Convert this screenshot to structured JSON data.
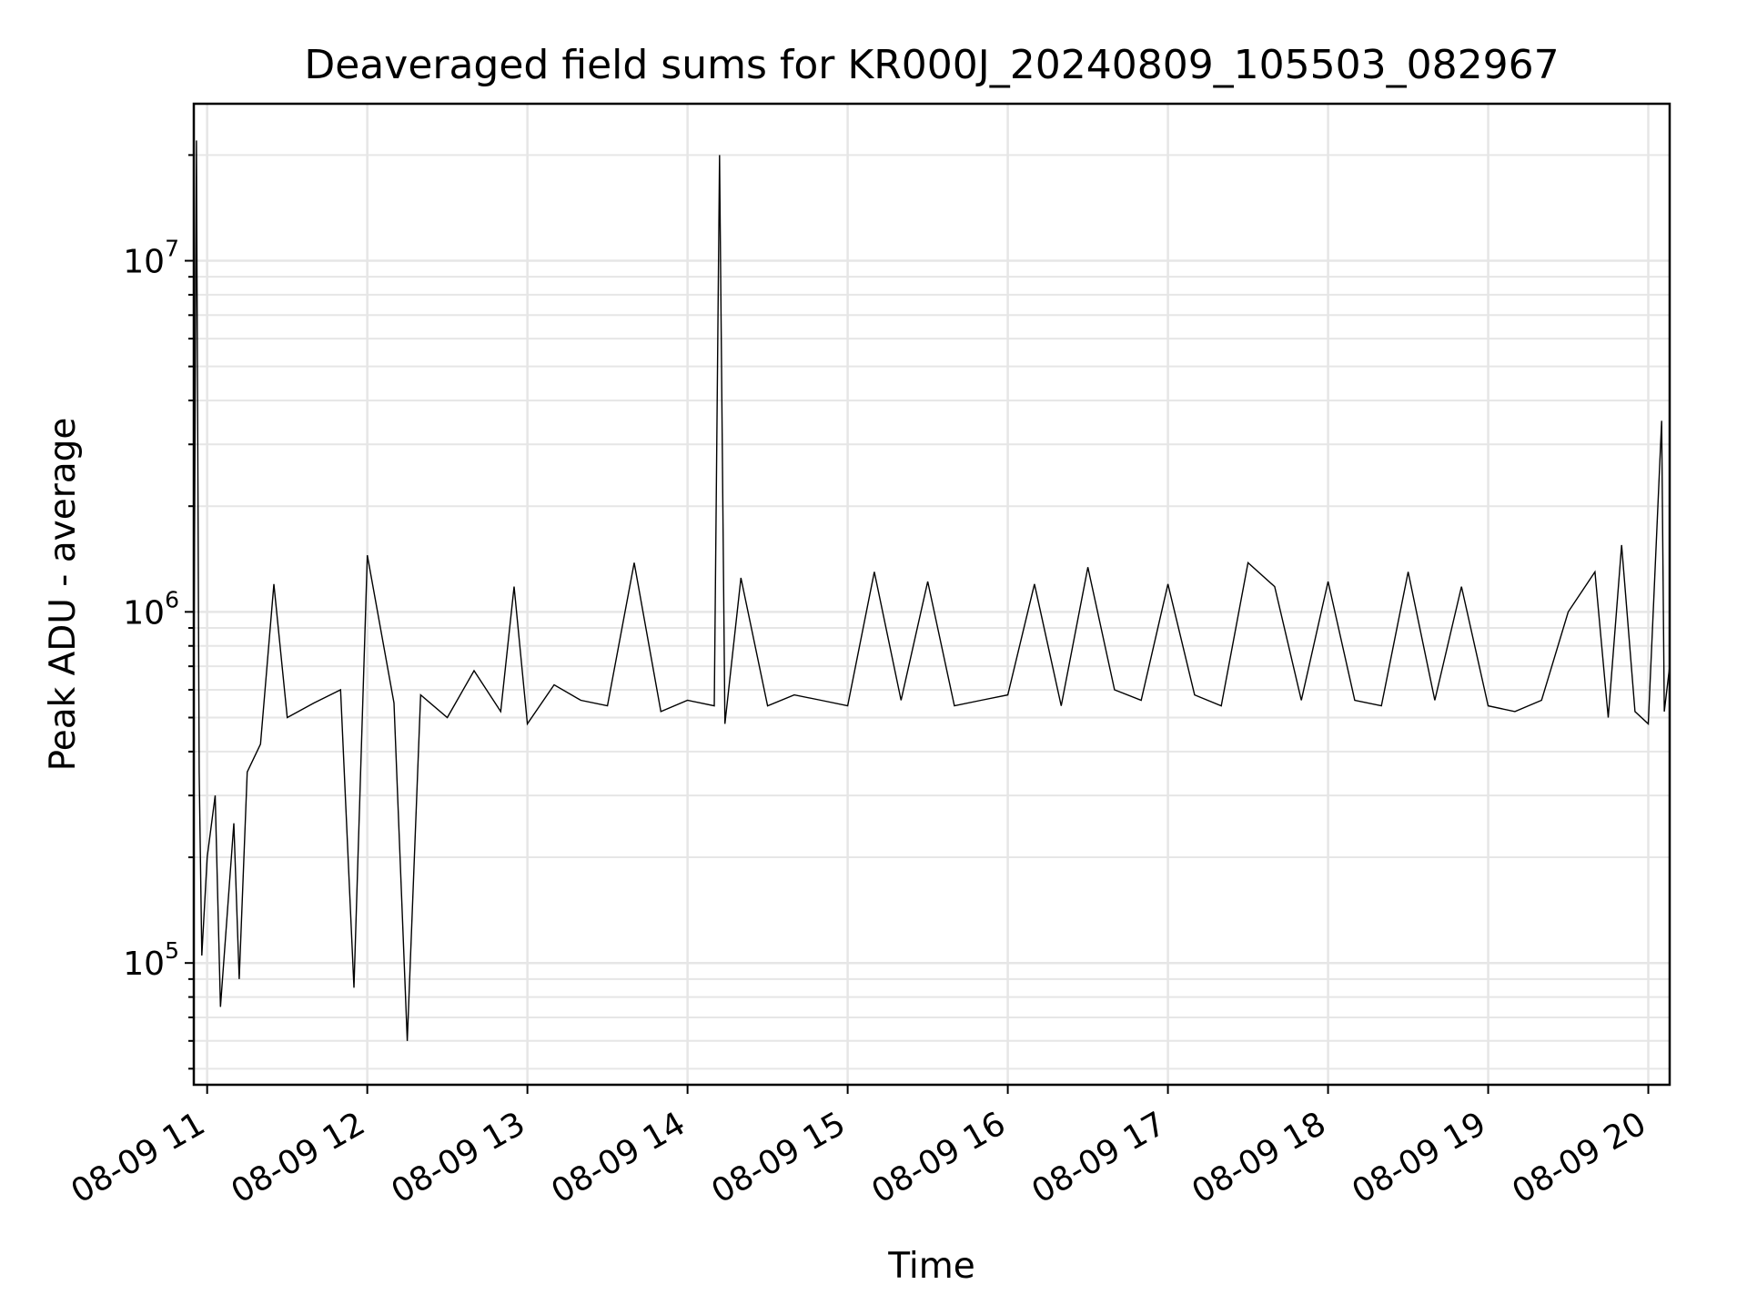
{
  "chart_data": {
    "type": "line",
    "title": "Deaveraged field sums for KR000J_20240809_105503_082967",
    "xlabel": "Time",
    "ylabel": "Peak ADU - average",
    "yscale": "log",
    "grid": true,
    "xlim": [
      "2024-08-09 10:55",
      "2024-08-09 20:08"
    ],
    "ylim": [
      45000,
      28000000
    ],
    "x_ticks": [
      "08-09 11",
      "08-09 12",
      "08-09 13",
      "08-09 14",
      "08-09 15",
      "08-09 16",
      "08-09 17",
      "08-09 18",
      "08-09 19",
      "08-09 20"
    ],
    "y_ticks": [
      {
        "base": "10",
        "exp": "5"
      },
      {
        "base": "10",
        "exp": "6"
      },
      {
        "base": "10",
        "exp": "7"
      }
    ],
    "series": [
      {
        "color": "#000000",
        "x": [
          "2024-08-09 10:55",
          "2024-08-09 10:56",
          "2024-08-09 10:57",
          "2024-08-09 10:58",
          "2024-08-09 11:00",
          "2024-08-09 11:03",
          "2024-08-09 11:05",
          "2024-08-09 11:10",
          "2024-08-09 11:12",
          "2024-08-09 11:15",
          "2024-08-09 11:20",
          "2024-08-09 11:25",
          "2024-08-09 11:30",
          "2024-08-09 11:40",
          "2024-08-09 11:50",
          "2024-08-09 11:55",
          "2024-08-09 12:00",
          "2024-08-09 12:10",
          "2024-08-09 12:15",
          "2024-08-09 12:20",
          "2024-08-09 12:30",
          "2024-08-09 12:40",
          "2024-08-09 12:50",
          "2024-08-09 12:55",
          "2024-08-09 13:00",
          "2024-08-09 13:10",
          "2024-08-09 13:20",
          "2024-08-09 13:30",
          "2024-08-09 13:40",
          "2024-08-09 13:50",
          "2024-08-09 14:00",
          "2024-08-09 14:10",
          "2024-08-09 14:12",
          "2024-08-09 14:14",
          "2024-08-09 14:20",
          "2024-08-09 14:30",
          "2024-08-09 14:40",
          "2024-08-09 14:50",
          "2024-08-09 15:00",
          "2024-08-09 15:10",
          "2024-08-09 15:20",
          "2024-08-09 15:30",
          "2024-08-09 15:40",
          "2024-08-09 15:50",
          "2024-08-09 16:00",
          "2024-08-09 16:10",
          "2024-08-09 16:20",
          "2024-08-09 16:30",
          "2024-08-09 16:40",
          "2024-08-09 16:50",
          "2024-08-09 17:00",
          "2024-08-09 17:10",
          "2024-08-09 17:20",
          "2024-08-09 17:30",
          "2024-08-09 17:40",
          "2024-08-09 17:50",
          "2024-08-09 18:00",
          "2024-08-09 18:10",
          "2024-08-09 18:20",
          "2024-08-09 18:30",
          "2024-08-09 18:40",
          "2024-08-09 18:50",
          "2024-08-09 19:00",
          "2024-08-09 19:10",
          "2024-08-09 19:20",
          "2024-08-09 19:30",
          "2024-08-09 19:40",
          "2024-08-09 19:45",
          "2024-08-09 19:50",
          "2024-08-09 19:55",
          "2024-08-09 20:00",
          "2024-08-09 20:05",
          "2024-08-09 20:06",
          "2024-08-09 20:08"
        ],
        "y": [
          600000,
          22000000,
          350000,
          105000,
          200000,
          300000,
          75000,
          250000,
          90000,
          350000,
          420000,
          1200000,
          500000,
          550000,
          600000,
          85000,
          1450000,
          550000,
          60000,
          580000,
          500000,
          680000,
          520000,
          1180000,
          480000,
          620000,
          560000,
          540000,
          1380000,
          520000,
          560000,
          540000,
          20000000,
          480000,
          1250000,
          540000,
          580000,
          560000,
          540000,
          1300000,
          560000,
          1220000,
          540000,
          560000,
          580000,
          1200000,
          540000,
          1340000,
          600000,
          560000,
          1200000,
          580000,
          540000,
          1380000,
          1180000,
          560000,
          1220000,
          560000,
          540000,
          1300000,
          560000,
          1180000,
          540000,
          520000,
          560000,
          1000000,
          1300000,
          500000,
          1550000,
          520000,
          480000,
          3500000,
          520000,
          700000
        ]
      }
    ]
  }
}
